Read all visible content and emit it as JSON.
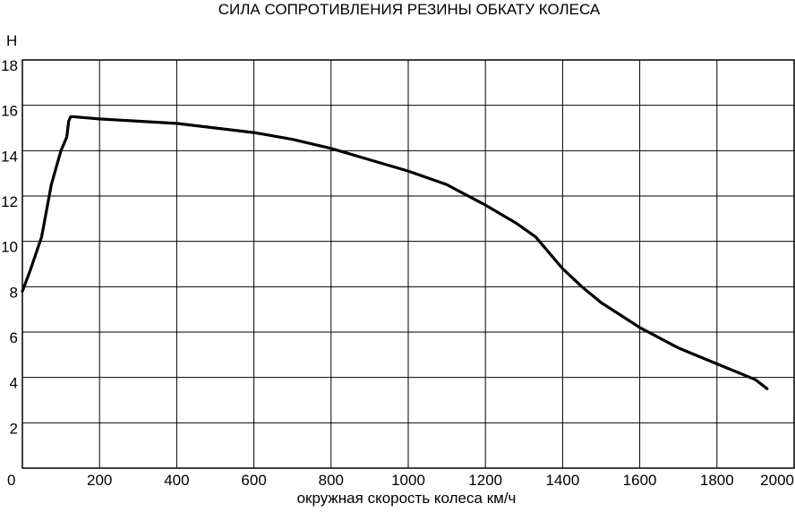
{
  "chart_data": {
    "type": "line",
    "title": "СИЛА СОПРОТИВЛЕНИЯ РЕЗИНЫ ОБКАТУ КОЛЕСА",
    "xlabel": "окружная скорость колеса км/ч",
    "ylabel": "Н",
    "xlim": [
      0,
      2000
    ],
    "ylim": [
      0,
      18
    ],
    "x_ticks": [
      "0",
      "200",
      "400",
      "600",
      "800",
      "1000",
      "1200",
      "1400",
      "1600",
      "1800",
      "2000"
    ],
    "y_ticks": [
      "2",
      "4",
      "6",
      "8",
      "10",
      "12",
      "14",
      "16",
      "18"
    ],
    "grid": true,
    "series": [
      {
        "color": "#000000",
        "x": [
          0,
          20,
          50,
          75,
          100,
          115,
          120,
          125,
          130,
          200,
          300,
          400,
          500,
          600,
          700,
          800,
          900,
          1000,
          1100,
          1200,
          1280,
          1330,
          1370,
          1400,
          1450,
          1500,
          1600,
          1700,
          1800,
          1900,
          1930
        ],
        "y": [
          7.8,
          8.7,
          10.2,
          12.5,
          14.0,
          14.6,
          15.3,
          15.5,
          15.5,
          15.4,
          15.3,
          15.2,
          15.0,
          14.8,
          14.5,
          14.1,
          13.6,
          13.1,
          12.5,
          11.6,
          10.8,
          10.2,
          9.4,
          8.8,
          8.0,
          7.3,
          6.2,
          5.3,
          4.6,
          3.9,
          3.5
        ]
      }
    ]
  }
}
